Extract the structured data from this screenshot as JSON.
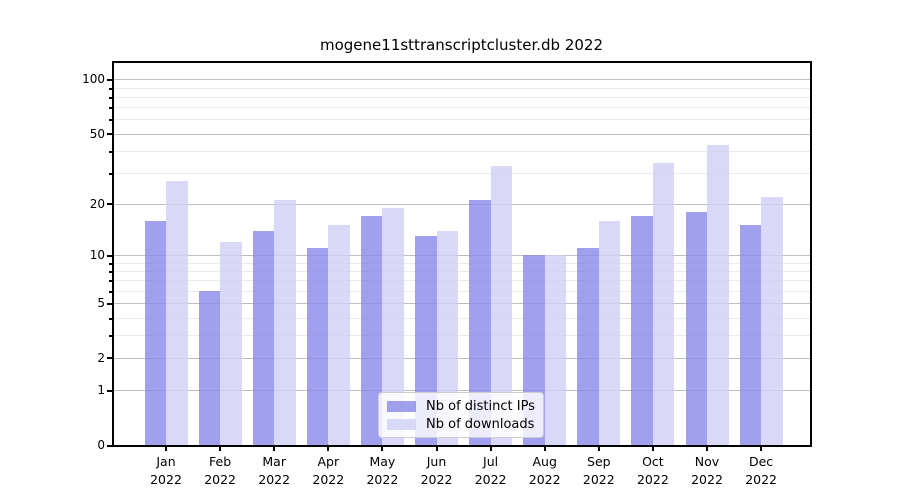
{
  "chart_data": {
    "type": "bar",
    "title": "mogene11sttranscriptcluster.db 2022",
    "xlabel": "",
    "ylabel": "",
    "yscale": "log1p",
    "ylim": [
      0,
      125
    ],
    "grid": true,
    "legend_position": "bottom-center",
    "yticks": [
      100,
      50,
      20,
      10,
      5,
      2,
      1,
      0
    ],
    "y_minor_gridlines": [
      3,
      4,
      6,
      7,
      8,
      9,
      30,
      40,
      60,
      70,
      80,
      90
    ],
    "categories": [
      {
        "month": "Jan",
        "year": "2022"
      },
      {
        "month": "Feb",
        "year": "2022"
      },
      {
        "month": "Mar",
        "year": "2022"
      },
      {
        "month": "Apr",
        "year": "2022"
      },
      {
        "month": "May",
        "year": "2022"
      },
      {
        "month": "Jun",
        "year": "2022"
      },
      {
        "month": "Jul",
        "year": "2022"
      },
      {
        "month": "Aug",
        "year": "2022"
      },
      {
        "month": "Sep",
        "year": "2022"
      },
      {
        "month": "Oct",
        "year": "2022"
      },
      {
        "month": "Nov",
        "year": "2022"
      },
      {
        "month": "Dec",
        "year": "2022"
      }
    ],
    "series": [
      {
        "name": "Nb of distinct IPs",
        "key": "distinct-ips",
        "color": "rgba(136,136,234,0.8)",
        "values": [
          16,
          6,
          14,
          11,
          17,
          13,
          21,
          10,
          11,
          17,
          18,
          15
        ]
      },
      {
        "name": "Nb of downloads",
        "key": "downloads",
        "color": "rgba(208,208,245,0.8)",
        "values": [
          27,
          12,
          21,
          15,
          19,
          14,
          33,
          10,
          16,
          34,
          43,
          22
        ]
      }
    ]
  }
}
